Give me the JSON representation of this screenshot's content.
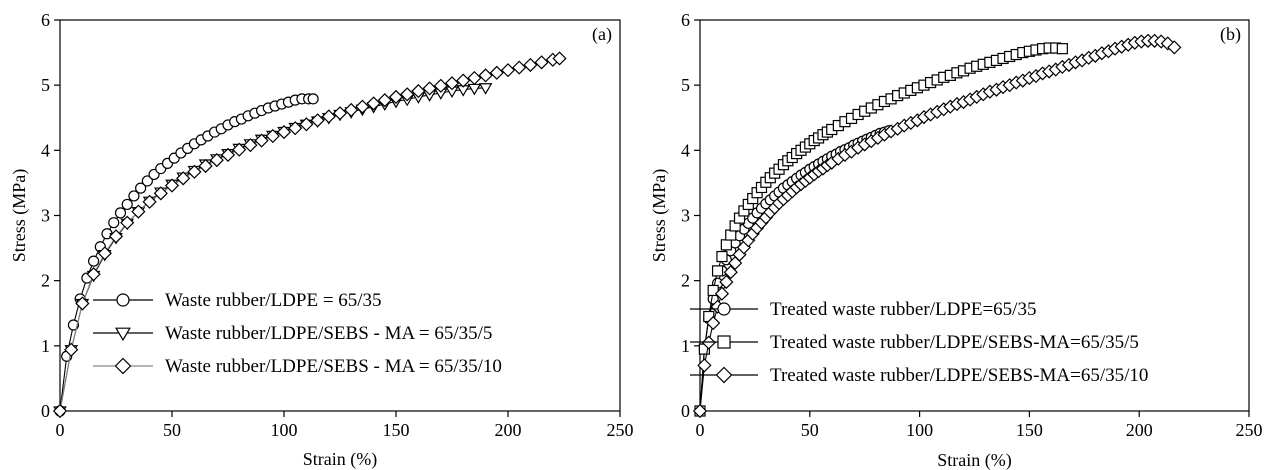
{
  "chart_data": [
    {
      "type": "scatter",
      "panel_label": "(a)",
      "xlabel": "Strain (%)",
      "ylabel": "Stress (MPa)",
      "xlim": [
        0,
        250
      ],
      "ylim": [
        0,
        6
      ],
      "xticks": [
        "0",
        "50",
        "100",
        "150",
        "200",
        "250"
      ],
      "yticks": [
        "0",
        "1",
        "2",
        "3",
        "4",
        "5",
        "6"
      ],
      "grid": false,
      "legend_position": "lower-right",
      "series": [
        {
          "name": "Waste rubber/LDPE = 65/35",
          "marker": "circle",
          "line_color": "#000000",
          "x": [
            0,
            3,
            6,
            9,
            12,
            15,
            18,
            21,
            24,
            27,
            30,
            33,
            36,
            39,
            42,
            45,
            48,
            51,
            54,
            57,
            60,
            63,
            66,
            69,
            72,
            75,
            78,
            81,
            84,
            87,
            90,
            93,
            96,
            99,
            102,
            105,
            108,
            111,
            113
          ],
          "y": [
            0,
            0.84,
            1.32,
            1.72,
            2.04,
            2.3,
            2.52,
            2.72,
            2.89,
            3.04,
            3.17,
            3.3,
            3.42,
            3.53,
            3.63,
            3.72,
            3.8,
            3.88,
            3.96,
            4.03,
            4.1,
            4.16,
            4.22,
            4.28,
            4.33,
            4.39,
            4.44,
            4.48,
            4.53,
            4.57,
            4.61,
            4.65,
            4.68,
            4.71,
            4.74,
            4.77,
            4.79,
            4.79,
            4.79
          ]
        },
        {
          "name": "Waste rubber/LDPE/SEBS - MA = 65/35/5",
          "marker": "triangle-down",
          "line_color": "#000000",
          "x": [
            0,
            5,
            10,
            15,
            20,
            25,
            30,
            35,
            40,
            45,
            50,
            55,
            60,
            65,
            70,
            75,
            80,
            85,
            90,
            95,
            100,
            105,
            110,
            115,
            120,
            125,
            130,
            135,
            140,
            145,
            150,
            155,
            160,
            165,
            170,
            175,
            180,
            185,
            190
          ],
          "y": [
            0,
            0.94,
            1.65,
            2.08,
            2.4,
            2.66,
            2.88,
            3.06,
            3.22,
            3.36,
            3.48,
            3.59,
            3.69,
            3.79,
            3.87,
            3.95,
            4.03,
            4.1,
            4.17,
            4.23,
            4.29,
            4.35,
            4.4,
            4.45,
            4.5,
            4.55,
            4.59,
            4.63,
            4.67,
            4.71,
            4.75,
            4.78,
            4.82,
            4.85,
            4.88,
            4.91,
            4.93,
            4.95,
            4.96
          ]
        },
        {
          "name": "Waste rubber/LDPE/SEBS - MA = 65/35/10",
          "marker": "diamond",
          "line_color": "#888888",
          "x": [
            0,
            5,
            10,
            15,
            20,
            25,
            30,
            35,
            40,
            45,
            50,
            55,
            60,
            65,
            70,
            75,
            80,
            85,
            90,
            95,
            100,
            105,
            110,
            115,
            120,
            125,
            130,
            135,
            140,
            145,
            150,
            155,
            160,
            165,
            170,
            175,
            180,
            185,
            190,
            195,
            200,
            205,
            210,
            215,
            220,
            223
          ],
          "y": [
            0,
            0.94,
            1.65,
            2.1,
            2.42,
            2.68,
            2.89,
            3.06,
            3.21,
            3.34,
            3.46,
            3.57,
            3.67,
            3.76,
            3.85,
            3.93,
            4.01,
            4.08,
            4.15,
            4.22,
            4.28,
            4.34,
            4.4,
            4.46,
            4.52,
            4.57,
            4.62,
            4.67,
            4.72,
            4.77,
            4.82,
            4.86,
            4.91,
            4.95,
            4.99,
            5.03,
            5.07,
            5.11,
            5.15,
            5.19,
            5.23,
            5.27,
            5.31,
            5.35,
            5.39,
            5.41
          ]
        }
      ]
    },
    {
      "type": "scatter",
      "panel_label": "(b)",
      "xlabel": "Strain (%)",
      "ylabel": "Stress (MPa)",
      "xlim": [
        0,
        250
      ],
      "ylim": [
        0,
        6
      ],
      "xticks": [
        "0",
        "50",
        "100",
        "150",
        "200",
        "250"
      ],
      "yticks": [
        "0",
        "1",
        "2",
        "3",
        "4",
        "5",
        "6"
      ],
      "grid": false,
      "legend_position": "lower-right",
      "series": [
        {
          "name": "Treated waste rubber/LDPE=65/35",
          "marker": "circle",
          "line_color": "#000000",
          "x": [
            0,
            2,
            4,
            6,
            8,
            10,
            12,
            14,
            16,
            18,
            20,
            22,
            24,
            26,
            28,
            30,
            32,
            34,
            36,
            38,
            40,
            42,
            44,
            46,
            48,
            50,
            52,
            54,
            56,
            58,
            60,
            62,
            64,
            66,
            68,
            70,
            72,
            74,
            76,
            78,
            80,
            82,
            84,
            86
          ],
          "y": [
            0,
            0.95,
            1.42,
            1.72,
            1.96,
            2.15,
            2.32,
            2.46,
            2.58,
            2.69,
            2.79,
            2.88,
            2.96,
            3.04,
            3.11,
            3.18,
            3.24,
            3.3,
            3.36,
            3.42,
            3.47,
            3.52,
            3.57,
            3.62,
            3.66,
            3.71,
            3.75,
            3.79,
            3.83,
            3.87,
            3.91,
            3.94,
            3.98,
            4.01,
            4.04,
            4.08,
            4.11,
            4.14,
            4.17,
            4.2,
            4.23,
            4.26,
            4.28,
            4.3
          ]
        },
        {
          "name": "Treated waste rubber/LDPE/SEBS-MA=65/35/5",
          "marker": "square",
          "line_color": "#000000",
          "x": [
            0,
            2,
            4,
            6,
            8,
            10,
            12,
            14,
            16,
            18,
            20,
            22,
            24,
            26,
            28,
            30,
            32,
            34,
            36,
            38,
            40,
            42,
            44,
            46,
            48,
            50,
            52,
            54,
            56,
            58,
            60,
            63,
            66,
            69,
            72,
            75,
            78,
            81,
            84,
            87,
            90,
            93,
            96,
            99,
            102,
            105,
            108,
            111,
            114,
            117,
            120,
            123,
            126,
            129,
            132,
            135,
            138,
            141,
            144,
            147,
            150,
            153,
            156,
            159,
            162,
            165
          ],
          "y": [
            0,
            0.95,
            1.45,
            1.85,
            2.15,
            2.37,
            2.55,
            2.7,
            2.84,
            2.96,
            3.07,
            3.17,
            3.26,
            3.35,
            3.43,
            3.51,
            3.58,
            3.65,
            3.71,
            3.78,
            3.84,
            3.89,
            3.95,
            4,
            4.05,
            4.1,
            4.15,
            4.19,
            4.24,
            4.28,
            4.32,
            4.38,
            4.44,
            4.49,
            4.55,
            4.6,
            4.65,
            4.7,
            4.75,
            4.79,
            4.84,
            4.88,
            4.92,
            4.96,
            5.0,
            5.04,
            5.08,
            5.12,
            5.15,
            5.19,
            5.22,
            5.26,
            5.29,
            5.32,
            5.35,
            5.38,
            5.41,
            5.44,
            5.47,
            5.5,
            5.52,
            5.54,
            5.56,
            5.57,
            5.57,
            5.56
          ]
        },
        {
          "name": "Treated waste rubber/LDPE/SEBS-MA=65/35/10",
          "marker": "diamond",
          "line_color": "#000000",
          "x": [
            0,
            2,
            4,
            6,
            8,
            10,
            12,
            14,
            16,
            18,
            20,
            22,
            24,
            26,
            28,
            30,
            32,
            34,
            36,
            38,
            40,
            42,
            44,
            46,
            48,
            50,
            52,
            54,
            56,
            58,
            60,
            63,
            66,
            69,
            72,
            75,
            78,
            81,
            84,
            87,
            90,
            93,
            96,
            99,
            102,
            105,
            108,
            111,
            114,
            117,
            120,
            123,
            126,
            129,
            132,
            135,
            138,
            141,
            144,
            147,
            150,
            153,
            156,
            159,
            162,
            165,
            168,
            171,
            174,
            177,
            180,
            183,
            186,
            189,
            192,
            195,
            198,
            201,
            204,
            207,
            210,
            213,
            216
          ],
          "y": [
            0,
            0.7,
            1.05,
            1.35,
            1.6,
            1.8,
            1.98,
            2.13,
            2.27,
            2.4,
            2.51,
            2.62,
            2.72,
            2.81,
            2.89,
            2.97,
            3.05,
            3.12,
            3.19,
            3.25,
            3.31,
            3.37,
            3.43,
            3.48,
            3.53,
            3.58,
            3.63,
            3.68,
            3.72,
            3.77,
            3.81,
            3.87,
            3.93,
            3.98,
            4.04,
            4.09,
            4.14,
            4.19,
            4.24,
            4.29,
            4.33,
            4.38,
            4.42,
            4.46,
            4.51,
            4.55,
            4.59,
            4.63,
            4.67,
            4.71,
            4.74,
            4.78,
            4.82,
            4.86,
            4.9,
            4.93,
            4.97,
            5.0,
            5.04,
            5.07,
            5.11,
            5.14,
            5.18,
            5.21,
            5.24,
            5.28,
            5.31,
            5.35,
            5.38,
            5.42,
            5.45,
            5.49,
            5.52,
            5.56,
            5.59,
            5.62,
            5.65,
            5.67,
            5.68,
            5.68,
            5.67,
            5.64,
            5.58
          ]
        }
      ]
    }
  ]
}
